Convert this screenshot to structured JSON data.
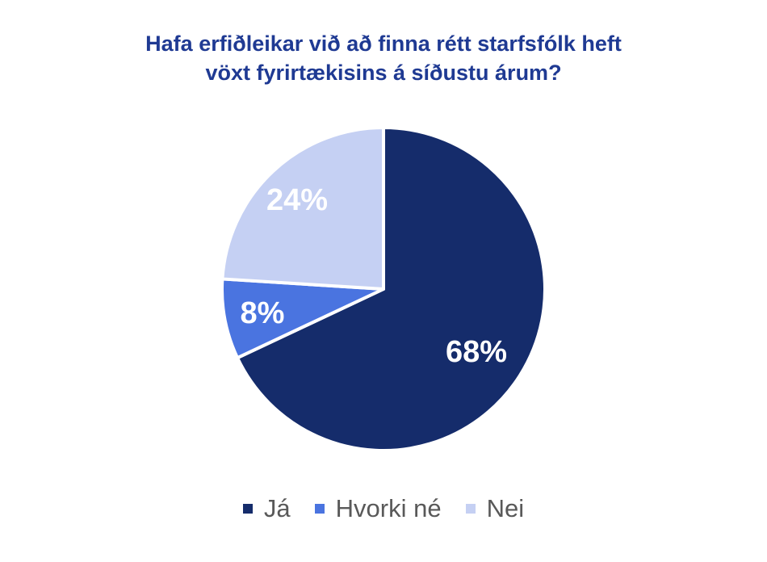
{
  "chart_data": {
    "type": "pie",
    "title_lines": [
      "Hafa erfiðleikar við að finna rétt starfsfólk heft",
      "vöxt fyrirtækisins á síðustu árum?"
    ],
    "slices": [
      {
        "name": "Já",
        "value": 68,
        "label": "68%",
        "color": "#152c6b"
      },
      {
        "name": "Hvorki né",
        "value": 8,
        "label": "8%",
        "color": "#4a74e0"
      },
      {
        "name": "Nei",
        "value": 24,
        "label": "24%",
        "color": "#c5d0f3"
      }
    ],
    "start": "12 o'clock, clockwise",
    "legend_position": "bottom"
  }
}
